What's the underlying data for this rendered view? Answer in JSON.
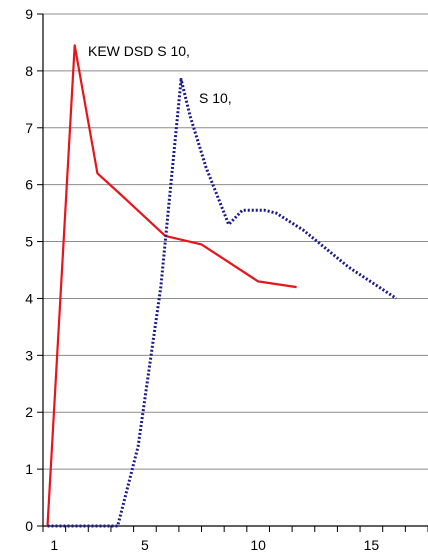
{
  "chart_data": {
    "type": "line",
    "title": "",
    "xlabel": "",
    "ylabel": "",
    "xlim": [
      0,
      17
    ],
    "ylim": [
      0,
      9
    ],
    "x_ticks": [
      1,
      5,
      10,
      15
    ],
    "y_ticks": [
      0,
      1,
      2,
      3,
      4,
      5,
      6,
      7,
      8,
      9
    ],
    "grid": "horizontal",
    "series": [
      {
        "name": "KEW DSD S 10,",
        "color": "#e8141c",
        "style": "solid",
        "x": [
          0.2,
          1.4,
          2.4,
          3.5,
          5.4,
          7.0,
          9.5,
          11.2
        ],
        "y": [
          0.0,
          8.45,
          6.2,
          5.8,
          5.1,
          4.95,
          4.3,
          4.2
        ]
      },
      {
        "name": "S 10,",
        "color": "#1a1a8c",
        "style": "dotted",
        "x": [
          0.2,
          3.3,
          4.2,
          5.2,
          6.1,
          6.5,
          7.2,
          8.2,
          8.8,
          9.8,
          10.3,
          11.5,
          13.5,
          15.6
        ],
        "y": [
          0.0,
          0.0,
          1.4,
          4.2,
          7.85,
          7.2,
          6.3,
          5.3,
          5.55,
          5.55,
          5.5,
          5.2,
          4.55,
          4.0
        ]
      }
    ]
  }
}
